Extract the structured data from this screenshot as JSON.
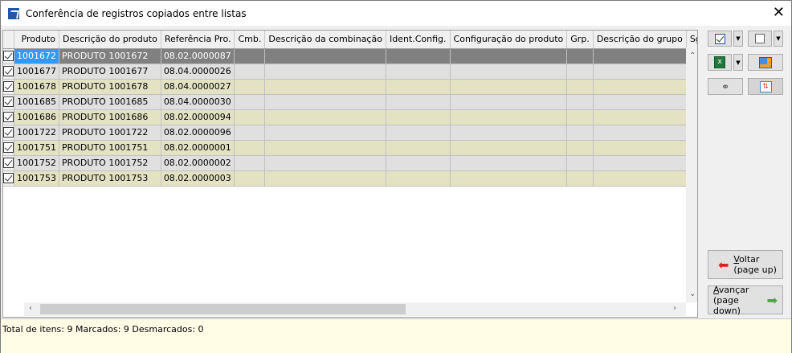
{
  "window": {
    "title": "Conferência de registros copiados entre listas",
    "close": "✕"
  },
  "grid": {
    "columns": [
      "Produto",
      "Descrição do produto",
      "Referência Pro.",
      "Cmb.",
      "Descrição da combinação",
      "Ident.Config.",
      "Configuração do produto",
      "Grp.",
      "Descrição do grupo",
      "Sg"
    ],
    "rows": [
      {
        "checked": true,
        "produto": "1001672",
        "descricao": "PRODUTO 1001672",
        "referencia": "08.02.0000087"
      },
      {
        "checked": true,
        "produto": "1001677",
        "descricao": "PRODUTO 1001677",
        "referencia": "08.04.0000026"
      },
      {
        "checked": true,
        "produto": "1001678",
        "descricao": "PRODUTO 1001678",
        "referencia": "08.04.0000027"
      },
      {
        "checked": true,
        "produto": "1001685",
        "descricao": "PRODUTO 1001685",
        "referencia": "08.04.0000030"
      },
      {
        "checked": true,
        "produto": "1001686",
        "descricao": "PRODUTO 1001686",
        "referencia": "08.02.0000094"
      },
      {
        "checked": true,
        "produto": "1001722",
        "descricao": "PRODUTO 1001722",
        "referencia": "08.02.0000096"
      },
      {
        "checked": true,
        "produto": "1001751",
        "descricao": "PRODUTO 1001751",
        "referencia": "08.02.0000001"
      },
      {
        "checked": true,
        "produto": "1001752",
        "descricao": "PRODUTO 1001752",
        "referencia": "08.02.0000002"
      },
      {
        "checked": true,
        "produto": "1001753",
        "descricao": "PRODUTO 1001753",
        "referencia": "08.02.0000003"
      }
    ],
    "colors": {
      "row_gray": "#e0e0e0",
      "row_khaki": "#e3e3c4",
      "selected": "#808080",
      "current_cell": "#3399ff"
    }
  },
  "status": {
    "text": "Total de itens: 9 Marcados: 9 Desmarcados: 0"
  },
  "buttons": {
    "back": {
      "key": "V",
      "rest": "oltar",
      "sub": "(page up)"
    },
    "next": {
      "key": "A",
      "rest": "vançar",
      "sub": "(page down)"
    }
  }
}
